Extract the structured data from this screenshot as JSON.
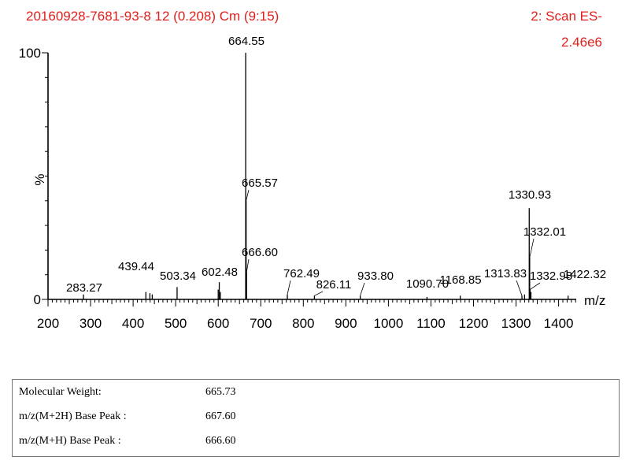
{
  "header": {
    "sample_title": "20160928-7681-93-8 12 (0.208) Cm (9:15)",
    "scan_label": "2: Scan ES-",
    "intensity": "2.46e6"
  },
  "chart_data": {
    "type": "line",
    "plot_style": "mass spectrum (stick plot)",
    "xlabel": "m/z",
    "ylabel": "%",
    "xlim": [
      200,
      1450
    ],
    "ylim": [
      0,
      100
    ],
    "x_ticks": [
      200,
      300,
      400,
      500,
      600,
      700,
      800,
      900,
      1000,
      1100,
      1200,
      1300,
      1400
    ],
    "y_ticks": [
      0,
      100
    ],
    "grid": false,
    "labeled_peaks": [
      {
        "x": 283.27,
        "y": 2,
        "label": "283.27"
      },
      {
        "x": 439.44,
        "y": 2.5,
        "label": "439.44"
      },
      {
        "x": 503.34,
        "y": 5,
        "label": "503.34"
      },
      {
        "x": 602.48,
        "y": 7,
        "label": "602.48"
      },
      {
        "x": 664.55,
        "y": 100,
        "label": "664.55"
      },
      {
        "x": 665.57,
        "y": 40,
        "label": "665.57"
      },
      {
        "x": 666.6,
        "y": 11,
        "label": "666.60"
      },
      {
        "x": 762.49,
        "y": 2,
        "label": "762.49"
      },
      {
        "x": 826.11,
        "y": 1.5,
        "label": "826.11"
      },
      {
        "x": 933.8,
        "y": 1.5,
        "label": "933.80"
      },
      {
        "x": 1090.7,
        "y": 1,
        "label": "1090.70"
      },
      {
        "x": 1168.85,
        "y": 1.5,
        "label": "1168.85"
      },
      {
        "x": 1313.83,
        "y": 1.5,
        "label": "1313.83"
      },
      {
        "x": 1330.93,
        "y": 37,
        "label": "1330.93"
      },
      {
        "x": 1332.01,
        "y": 17,
        "label": "1332.01"
      },
      {
        "x": 1332.98,
        "y": 4,
        "label": "1332.98"
      },
      {
        "x": 1422.32,
        "y": 1.5,
        "label": "1422.32"
      }
    ],
    "minor_peaks": [
      {
        "x": 430,
        "y": 3
      },
      {
        "x": 445,
        "y": 2
      },
      {
        "x": 600,
        "y": 4
      },
      {
        "x": 605,
        "y": 3
      },
      {
        "x": 1320,
        "y": 2
      },
      {
        "x": 1335,
        "y": 3
      }
    ]
  },
  "info_table": [
    {
      "key": "Molecular Weight:",
      "value": "665.73"
    },
    {
      "key": "m/z(M+2H) Base Peak :",
      "value": "667.60"
    },
    {
      "key": "m/z(M+H) Base Peak :",
      "value": "666.60"
    }
  ]
}
